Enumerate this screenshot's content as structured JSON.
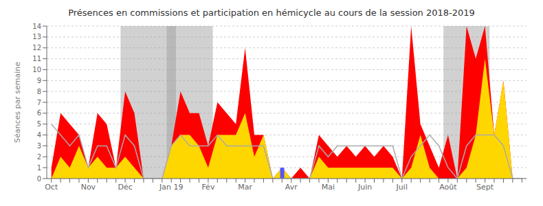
{
  "chart_data": {
    "type": "area",
    "title": "Présences en commissions et participation en hémicycle au cours de la session 2018-2019",
    "ylabel": "Séances par semaine",
    "ylim": [
      0,
      14
    ],
    "yticks": [
      0,
      1,
      2,
      3,
      4,
      5,
      6,
      7,
      8,
      9,
      10,
      11,
      12,
      13,
      14
    ],
    "grid": true,
    "categories": [
      "Oct",
      null,
      null,
      null,
      "Nov",
      null,
      null,
      null,
      "Déc",
      null,
      null,
      null,
      null,
      "Jan 19",
      null,
      null,
      null,
      "Fév",
      null,
      null,
      null,
      "Mar",
      null,
      null,
      null,
      null,
      "Avr",
      null,
      null,
      null,
      "Mai",
      null,
      null,
      null,
      "Juin",
      null,
      null,
      null,
      "Juil",
      null,
      null,
      null,
      null,
      "Août",
      null,
      null,
      null,
      "Sept",
      null,
      null,
      null,
      null
    ],
    "shaded_weeks": [
      [
        8,
        13
      ],
      [
        13,
        17
      ],
      [
        43,
        47
      ]
    ],
    "shaded_color": "#999999",
    "series": [
      {
        "type": "area",
        "color": "#ff0000",
        "values": [
          1,
          6,
          5,
          4,
          1,
          6,
          5,
          1,
          8,
          6,
          0,
          0,
          0,
          3,
          8,
          6,
          6,
          3,
          7,
          6,
          5,
          12,
          4,
          4,
          0,
          1,
          0,
          1,
          0,
          4,
          3,
          2,
          3,
          2,
          3,
          2,
          3,
          2,
          0,
          14,
          5,
          3,
          1,
          4,
          0,
          14,
          11,
          14,
          4,
          9,
          0,
          0
        ]
      },
      {
        "type": "area",
        "color": "#ffd700",
        "values": [
          0,
          2,
          1,
          3,
          1,
          2,
          1,
          1,
          2,
          1,
          0,
          0,
          0,
          3,
          4,
          4,
          3,
          1,
          4,
          4,
          4,
          6,
          2,
          4,
          0,
          1,
          0,
          0,
          0,
          2,
          1,
          1,
          1,
          1,
          1,
          1,
          1,
          1,
          0,
          1,
          4,
          1,
          0,
          0,
          0,
          1,
          4,
          11,
          4,
          9,
          0,
          0
        ]
      },
      {
        "type": "line",
        "color": "#aaaaaa",
        "values": [
          5,
          4,
          3,
          4,
          1,
          3,
          3,
          1,
          4,
          3,
          0,
          0,
          0,
          3,
          4,
          3,
          3,
          3,
          4,
          3,
          3,
          3,
          3,
          3,
          0,
          0,
          0,
          0,
          0,
          3,
          2,
          3,
          3,
          3,
          3,
          3,
          3,
          3,
          0,
          2,
          3,
          4,
          3,
          1,
          0,
          3,
          4,
          4,
          4,
          3,
          0,
          0
        ]
      },
      {
        "type": "bar",
        "color": "#5555ff",
        "values": [
          null,
          null,
          null,
          null,
          null,
          null,
          null,
          null,
          null,
          null,
          null,
          null,
          null,
          null,
          null,
          null,
          null,
          null,
          null,
          null,
          null,
          null,
          null,
          null,
          null,
          1,
          null,
          null,
          null,
          null,
          null,
          null,
          null,
          null,
          null,
          null,
          null,
          null,
          null,
          null,
          null,
          null,
          null,
          null,
          null,
          null,
          null,
          null,
          null,
          null,
          null,
          null
        ]
      }
    ]
  }
}
